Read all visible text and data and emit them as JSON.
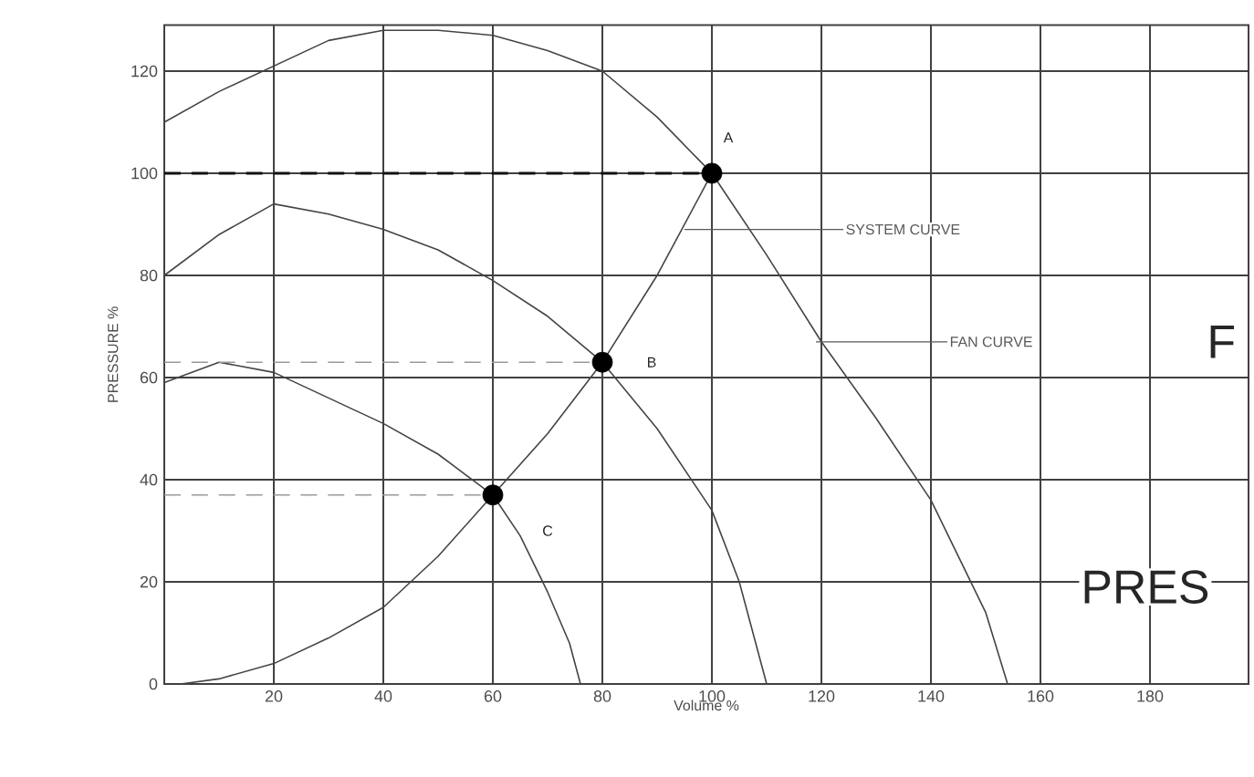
{
  "chart_data": {
    "type": "line",
    "xlabel": "Volume %",
    "ylabel": "PRESSURE %",
    "xlim": [
      0,
      198
    ],
    "ylim": [
      0,
      129
    ],
    "xticks": [
      20,
      40,
      60,
      80,
      100,
      120,
      140,
      160,
      180
    ],
    "yticks": [
      0,
      20,
      40,
      60,
      80,
      100,
      120
    ],
    "grid": true,
    "line_style": "solid",
    "marker": "none",
    "series": [
      {
        "color": "#444444",
        "x": [
          0,
          10,
          20,
          30,
          40,
          50,
          60,
          70,
          80,
          90,
          100,
          110,
          120,
          130,
          140,
          150,
          154
        ],
        "values": [
          110,
          116,
          121,
          126,
          128,
          128,
          127,
          124,
          120,
          111,
          100,
          84,
          67,
          52,
          36,
          14,
          0
        ]
      },
      {
        "color": "#444444",
        "x": [
          0,
          10,
          20,
          30,
          40,
          50,
          60,
          70,
          80,
          90,
          100,
          105,
          110
        ],
        "values": [
          80,
          88,
          94,
          92,
          89,
          85,
          79,
          72,
          63,
          50,
          34,
          20,
          0
        ]
      },
      {
        "color": "#444444",
        "x": [
          0,
          10,
          20,
          30,
          40,
          50,
          60,
          65,
          70,
          74,
          76
        ],
        "values": [
          59,
          63,
          61,
          56,
          51,
          45,
          37,
          29,
          18,
          8,
          0
        ]
      },
      {
        "color": "#444444",
        "x": [
          3,
          10,
          20,
          30,
          40,
          50,
          60,
          70,
          80,
          90,
          100
        ],
        "values": [
          0,
          1,
          4,
          9,
          15,
          25,
          37,
          49,
          63,
          80,
          100
        ]
      },
      {
        "line_style": "dashed",
        "color": "#111111",
        "x": [
          0,
          100
        ],
        "values": [
          100,
          100
        ]
      },
      {
        "line_style": "dashed",
        "color": "#999999",
        "x": [
          0,
          80
        ],
        "values": [
          63,
          63
        ]
      },
      {
        "line_style": "dashed",
        "color": "#999999",
        "x": [
          0,
          60
        ],
        "values": [
          37,
          37
        ]
      },
      {
        "type": "scatter",
        "marker": "circle",
        "color": "#000000",
        "x": [
          100,
          80,
          60
        ],
        "values": [
          100,
          63,
          37
        ]
      }
    ],
    "annotations": [
      "A",
      "B",
      "C",
      {
        "text": "SYSTEM CURVE",
        "x": 95,
        "y": 89
      },
      {
        "text": "FAN CURVE",
        "x": 119,
        "y": 67
      },
      "F",
      "PRES"
    ]
  }
}
